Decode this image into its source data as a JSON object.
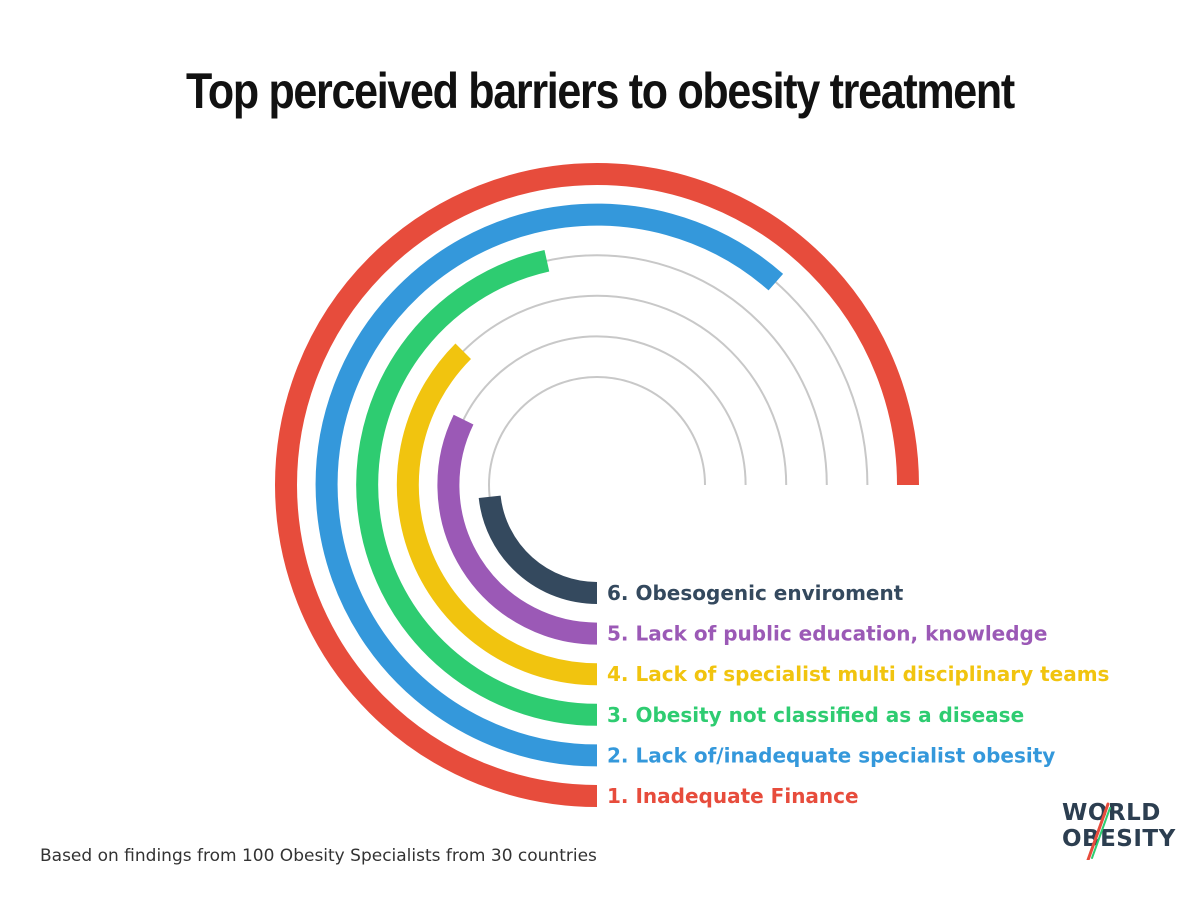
{
  "chart_data": {
    "type": "radial-bar",
    "title": "Top perceived barriers to obesity treatment",
    "note": "Based on findings from 100 Obesity Specialists from 30 countries",
    "max_value": 100,
    "bars": [
      {
        "rank": 1,
        "label": "1. Inadequate Finance",
        "value": 100,
        "color": "#e74c3c"
      },
      {
        "rank": 2,
        "label": "2. Lack of/inadequate specialist obesity",
        "value": 82,
        "color": "#3498db"
      },
      {
        "rank": 3,
        "label": "3. Obesity not classified as a disease",
        "value": 62,
        "color": "#2ecc71"
      },
      {
        "rank": 4,
        "label": "4. Lack of specialist multi disciplinary teams",
        "value": 50,
        "color": "#f1c40f"
      },
      {
        "rank": 5,
        "label": "5. Lack of public education, knowledge",
        "value": 43,
        "color": "#9b59b6"
      },
      {
        "rank": 6,
        "label": "6. Obesogenic enviroment",
        "value": 31,
        "color": "#34495e"
      }
    ]
  },
  "logo": {
    "line1": "WORLD",
    "line2": "OBESITY",
    "accent": "#e74c3c",
    "text_color": "#2c3e50"
  },
  "colors": {
    "track": "#c8c8c8",
    "title": "#111111"
  }
}
